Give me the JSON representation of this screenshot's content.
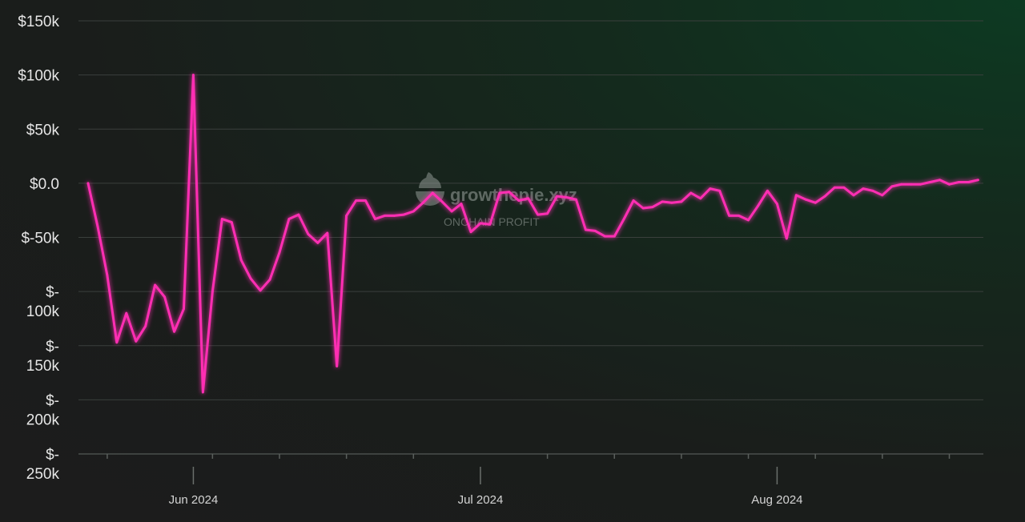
{
  "watermark": {
    "brand": "growthepie.xyz",
    "subtitle": "ONCHAIN PROFIT"
  },
  "chart_data": {
    "type": "line",
    "title": "",
    "xlabel": "",
    "ylabel": "",
    "ylim": [
      -250000,
      150000
    ],
    "yticks": [
      {
        "value": 150000,
        "lines": [
          "$150k"
        ]
      },
      {
        "value": 100000,
        "lines": [
          "$100k"
        ]
      },
      {
        "value": 50000,
        "lines": [
          "$50k"
        ]
      },
      {
        "value": 0,
        "lines": [
          "$0.0"
        ]
      },
      {
        "value": -50000,
        "lines": [
          "$-50k"
        ]
      },
      {
        "value": -100000,
        "lines": [
          "$-",
          "100k"
        ]
      },
      {
        "value": -150000,
        "lines": [
          "$-",
          "150k"
        ]
      },
      {
        "value": -200000,
        "lines": [
          "$-",
          "200k"
        ]
      },
      {
        "value": -250000,
        "lines": [
          "$-",
          "250k"
        ]
      }
    ],
    "xlim": [
      "2024-05-21",
      "2024-08-23"
    ],
    "xticks": [
      {
        "date": "2024-06-01",
        "label": "Jun 2024"
      },
      {
        "date": "2024-07-01",
        "label": "Jul 2024"
      },
      {
        "date": "2024-08-01",
        "label": "Aug 2024"
      }
    ],
    "minor_xticks": [
      "2024-05-23",
      "2024-06-03",
      "2024-06-10",
      "2024-06-17",
      "2024-06-24",
      "2024-07-08",
      "2024-07-15",
      "2024-07-22",
      "2024-07-29",
      "2024-08-05",
      "2024-08-12",
      "2024-08-19"
    ],
    "grid": true,
    "line_color": "#ff2fb3",
    "series": [
      {
        "name": "",
        "points": [
          [
            "2024-05-21",
            0
          ],
          [
            "2024-05-22",
            -40000
          ],
          [
            "2024-05-23",
            -85000
          ],
          [
            "2024-05-24",
            -147000
          ],
          [
            "2024-05-25",
            -120000
          ],
          [
            "2024-05-26",
            -146000
          ],
          [
            "2024-05-27",
            -132000
          ],
          [
            "2024-05-28",
            -94000
          ],
          [
            "2024-05-29",
            -105000
          ],
          [
            "2024-05-30",
            -137000
          ],
          [
            "2024-05-31",
            -116000
          ],
          [
            "2024-06-01",
            100000
          ],
          [
            "2024-06-02",
            -193000
          ],
          [
            "2024-06-03",
            -100000
          ],
          [
            "2024-06-04",
            -33000
          ],
          [
            "2024-06-05",
            -36000
          ],
          [
            "2024-06-06",
            -71000
          ],
          [
            "2024-06-07",
            -88000
          ],
          [
            "2024-06-08",
            -99000
          ],
          [
            "2024-06-09",
            -89000
          ],
          [
            "2024-06-10",
            -64000
          ],
          [
            "2024-06-11",
            -33000
          ],
          [
            "2024-06-12",
            -29000
          ],
          [
            "2024-06-13",
            -47000
          ],
          [
            "2024-06-14",
            -55000
          ],
          [
            "2024-06-15",
            -46000
          ],
          [
            "2024-06-16",
            -169000
          ],
          [
            "2024-06-17",
            -30000
          ],
          [
            "2024-06-18",
            -16000
          ],
          [
            "2024-06-19",
            -16000
          ],
          [
            "2024-06-20",
            -33000
          ],
          [
            "2024-06-21",
            -30000
          ],
          [
            "2024-06-22",
            -30000
          ],
          [
            "2024-06-23",
            -29000
          ],
          [
            "2024-06-24",
            -26000
          ],
          [
            "2024-06-25",
            -18000
          ],
          [
            "2024-06-26",
            -9000
          ],
          [
            "2024-06-27",
            -17000
          ],
          [
            "2024-06-28",
            -26000
          ],
          [
            "2024-06-29",
            -19000
          ],
          [
            "2024-06-30",
            -45000
          ],
          [
            "2024-07-01",
            -37000
          ],
          [
            "2024-07-02",
            -38000
          ],
          [
            "2024-07-03",
            -9000
          ],
          [
            "2024-07-04",
            -8000
          ],
          [
            "2024-07-05",
            -16000
          ],
          [
            "2024-07-06",
            -14000
          ],
          [
            "2024-07-07",
            -29000
          ],
          [
            "2024-07-08",
            -28000
          ],
          [
            "2024-07-09",
            -12000
          ],
          [
            "2024-07-10",
            -13000
          ],
          [
            "2024-07-11",
            -15000
          ],
          [
            "2024-07-12",
            -43000
          ],
          [
            "2024-07-13",
            -44000
          ],
          [
            "2024-07-14",
            -49000
          ],
          [
            "2024-07-15",
            -49000
          ],
          [
            "2024-07-16",
            -33000
          ],
          [
            "2024-07-17",
            -16000
          ],
          [
            "2024-07-18",
            -23000
          ],
          [
            "2024-07-19",
            -22000
          ],
          [
            "2024-07-20",
            -17000
          ],
          [
            "2024-07-21",
            -18000
          ],
          [
            "2024-07-22",
            -17000
          ],
          [
            "2024-07-23",
            -9000
          ],
          [
            "2024-07-24",
            -14000
          ],
          [
            "2024-07-25",
            -5000
          ],
          [
            "2024-07-26",
            -7000
          ],
          [
            "2024-07-27",
            -30000
          ],
          [
            "2024-07-28",
            -30000
          ],
          [
            "2024-07-29",
            -34000
          ],
          [
            "2024-07-30",
            -21000
          ],
          [
            "2024-07-31",
            -7000
          ],
          [
            "2024-08-01",
            -19000
          ],
          [
            "2024-08-02",
            -51000
          ],
          [
            "2024-08-03",
            -11000
          ],
          [
            "2024-08-04",
            -15000
          ],
          [
            "2024-08-05",
            -18000
          ],
          [
            "2024-08-06",
            -12000
          ],
          [
            "2024-08-07",
            -4000
          ],
          [
            "2024-08-08",
            -4000
          ],
          [
            "2024-08-09",
            -11000
          ],
          [
            "2024-08-10",
            -5000
          ],
          [
            "2024-08-11",
            -7000
          ],
          [
            "2024-08-12",
            -11000
          ],
          [
            "2024-08-13",
            -3000
          ],
          [
            "2024-08-14",
            -1000
          ],
          [
            "2024-08-15",
            -1000
          ],
          [
            "2024-08-16",
            -1000
          ],
          [
            "2024-08-17",
            1000
          ],
          [
            "2024-08-18",
            3000
          ],
          [
            "2024-08-19",
            -1000
          ],
          [
            "2024-08-20",
            1000
          ],
          [
            "2024-08-21",
            1000
          ],
          [
            "2024-08-22",
            3000
          ]
        ]
      }
    ]
  }
}
